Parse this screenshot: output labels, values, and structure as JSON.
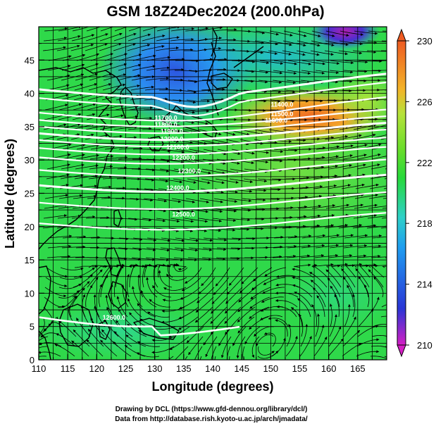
{
  "title": "GSM 18Z24Dec2024 (200.0hPa)",
  "xlabel": "Longitude (degrees)",
  "ylabel": "Latitude  (degrees)",
  "x_ticks": [
    "110",
    "115",
    "120",
    "125",
    "130",
    "135",
    "140",
    "145",
    "150",
    "155",
    "160",
    "165"
  ],
  "y_ticks": [
    "0",
    "5",
    "10",
    "15",
    "20",
    "25",
    "30",
    "35",
    "40",
    "45"
  ],
  "colorbar": {
    "ticks": [
      "230",
      "226",
      "222",
      "218",
      "214",
      "210"
    ],
    "colors": [
      "#d41fc4",
      "#2a36d6",
      "#1f9df0",
      "#2ed0c8",
      "#27d93a",
      "#68dd2b",
      "#b6e23a",
      "#f3b429",
      "#ee5b22"
    ]
  },
  "contour_labels": [
    "11400.0",
    "11500.0",
    "11600.0",
    "11700.0",
    "11800.0",
    "11900.0",
    "12000.0",
    "12100.0",
    "12200.0",
    "12300.0",
    "12400.0",
    "12500.0",
    "12600.0"
  ],
  "credits": [
    "Drawing by DCL (https://www.gfd-dennou.org/library/dcl/)",
    "Data from http://database.rish.kyoto-u.ac.jp/arch/jmadata/"
  ],
  "chart_data": {
    "type": "heatmap",
    "title": "GSM 18Z24Dec2024 (200.0hPa)",
    "xlabel": "Longitude (degrees)",
    "ylabel": "Latitude  (degrees)",
    "xlim": [
      110,
      170
    ],
    "ylim": [
      0,
      50
    ],
    "color_range": [
      210,
      230
    ],
    "colorbar_ticks": [
      210,
      214,
      218,
      222,
      226,
      230
    ],
    "overlays": [
      "streamlines",
      "geopotential height contours (white)",
      "coastlines"
    ],
    "grid": true
  }
}
